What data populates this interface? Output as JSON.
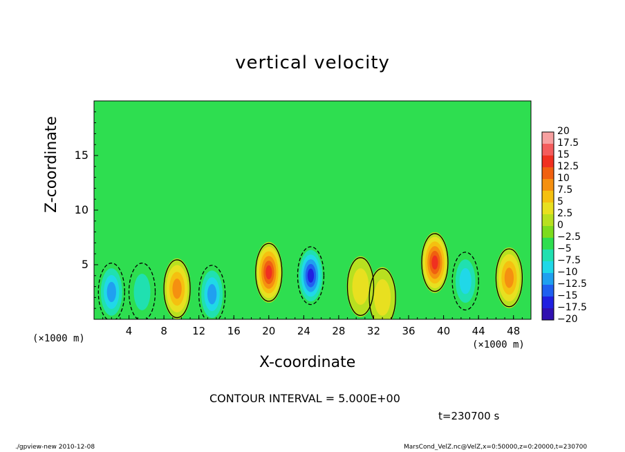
{
  "chart_data": {
    "type": "heatmap",
    "title": "vertical velocity",
    "xlabel": "X-coordinate",
    "ylabel": "Z-coordinate",
    "x_unit_left": "(×1000 m)",
    "x_unit_right": "(×1000 m)",
    "xlim": [
      0,
      50
    ],
    "ylim": [
      0,
      20
    ],
    "x_ticks": [
      "4",
      "8",
      "12",
      "16",
      "20",
      "24",
      "28",
      "32",
      "36",
      "40",
      "44",
      "48"
    ],
    "y_ticks": [
      "5",
      "10",
      "15"
    ],
    "contour_interval_label": "CONTOUR INTERVAL = 5.000E+00",
    "time_label": "t=230700 s",
    "colorbar": {
      "labels": [
        "20",
        "17.5",
        "15",
        "12.5",
        "10",
        "7.5",
        "5",
        "2.5",
        "0",
        "−2.5",
        "−5",
        "−7.5",
        "−10",
        "−12.5",
        "−15",
        "−17.5",
        "−20"
      ],
      "colors": [
        "#f7a0a0",
        "#f45c5c",
        "#f03020",
        "#f06010",
        "#f59010",
        "#f5c010",
        "#e8e020",
        "#b8e020",
        "#7ddc1e",
        "#2ede50",
        "#20e0b0",
        "#20d8e8",
        "#20a0f0",
        "#2060f0",
        "#2020e0",
        "#3010b0",
        "#6010b0"
      ]
    },
    "background_value": 0,
    "cells": [
      {
        "x": 2,
        "z": 2.5,
        "value": -10
      },
      {
        "x": 9.5,
        "z": 2.8,
        "value": 11
      },
      {
        "x": 13.5,
        "z": 2.3,
        "value": -9
      },
      {
        "x": 20,
        "z": 4.3,
        "value": 15
      },
      {
        "x": 24.8,
        "z": 4.0,
        "value": -16
      },
      {
        "x": 30.5,
        "z": 3.0,
        "value": 6
      },
      {
        "x": 39,
        "z": 5.2,
        "value": 14
      },
      {
        "x": 42.5,
        "z": 3.5,
        "value": -7
      },
      {
        "x": 47.5,
        "z": 3.8,
        "value": 11
      },
      {
        "x": 5.5,
        "z": 2.5,
        "value": -4
      },
      {
        "x": 33,
        "z": 2.0,
        "value": 4
      }
    ]
  },
  "footer": {
    "left": "./gpview-new  2010-12-08",
    "right": "MarsCond_VelZ.nc@VelZ,x=0:50000,z=0:20000,t=230700"
  }
}
